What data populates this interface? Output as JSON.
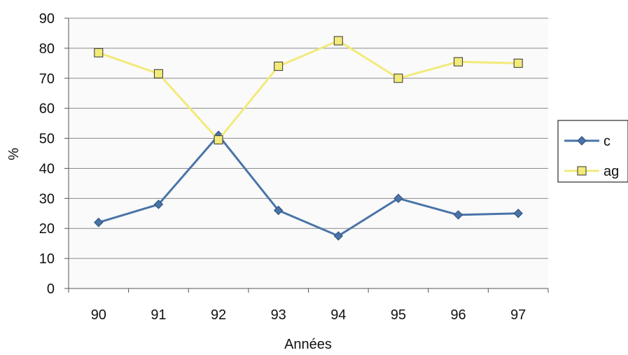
{
  "chart_data": {
    "type": "line",
    "title": "",
    "xlabel": "Années",
    "ylabel": "%",
    "categories": [
      "90",
      "91",
      "92",
      "93",
      "94",
      "95",
      "96",
      "97"
    ],
    "ylim": [
      0,
      90
    ],
    "yticks": [
      0,
      10,
      20,
      30,
      40,
      50,
      60,
      70,
      80,
      90
    ],
    "grid": true,
    "legend_position": "right",
    "series": [
      {
        "name": "c",
        "color": "#4a74a8",
        "marker": "diamond",
        "values": [
          22,
          28,
          51,
          26,
          17.5,
          30,
          24.5,
          25
        ]
      },
      {
        "name": "ag",
        "color": "#f2ea7a",
        "marker": "square",
        "values": [
          78.5,
          71.5,
          49.5,
          74,
          82.5,
          70,
          75.5,
          75
        ]
      }
    ]
  }
}
